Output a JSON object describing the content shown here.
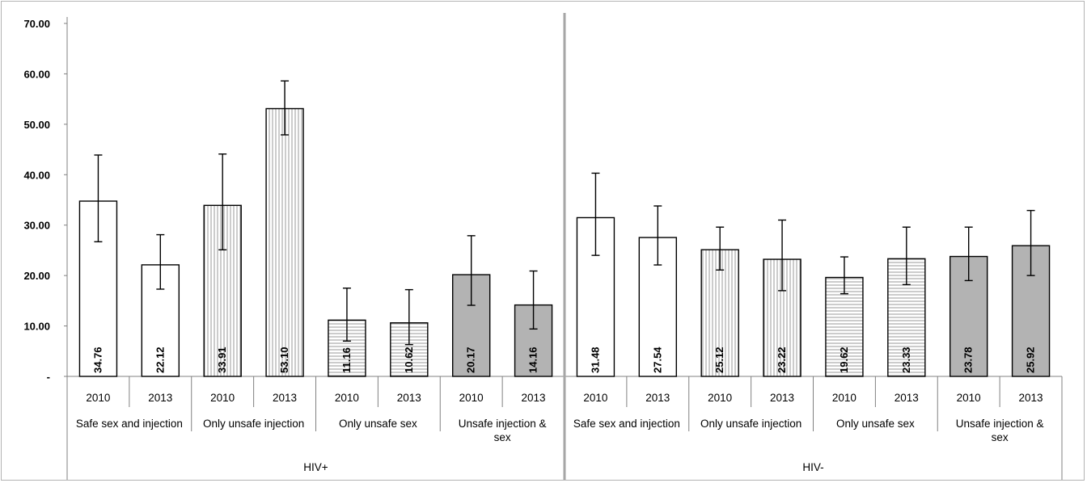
{
  "chart_data": {
    "type": "bar",
    "y_ticks": [
      "70.00",
      "60.00",
      "50.00",
      "40.00",
      "30.00",
      "20.00",
      "10.00",
      "-"
    ],
    "ylim": [
      0,
      70
    ],
    "grid": false,
    "legend": "none",
    "colors": {
      "safe": "#ffffff",
      "unsafe_injection": "#e6e6e6",
      "unsafe_sex": "#f2f2f2",
      "unsafe_both": "#b3b3b3",
      "edge": "#000000"
    },
    "groups": [
      {
        "label": "HIV+",
        "categories": [
          {
            "label": "Safe sex and injection",
            "pattern": "solid-white",
            "bars": [
              {
                "year": "2010",
                "value": 34.76,
                "label": "34.76",
                "err_low": 26.7,
                "err_high": 43.9
              },
              {
                "year": "2013",
                "value": 22.12,
                "label": "22.12",
                "err_low": 17.3,
                "err_high": 28.1
              }
            ]
          },
          {
            "label": "Only unsafe injection",
            "pattern": "vertical-lines",
            "bars": [
              {
                "year": "2010",
                "value": 33.91,
                "label": "33.91",
                "err_low": 25.1,
                "err_high": 44.1
              },
              {
                "year": "2013",
                "value": 53.1,
                "label": "53.10",
                "err_low": 47.9,
                "err_high": 58.6
              }
            ]
          },
          {
            "label": "Only unsafe sex",
            "pattern": "horizontal-lines",
            "bars": [
              {
                "year": "2010",
                "value": 11.16,
                "label": "11.16",
                "err_low": 7.0,
                "err_high": 17.5
              },
              {
                "year": "2013",
                "value": 10.62,
                "label": "10.62",
                "err_low": 6.3,
                "err_high": 17.2
              }
            ]
          },
          {
            "label": "Unsafe injection & sex",
            "pattern": "solid-gray",
            "bars": [
              {
                "year": "2010",
                "value": 20.17,
                "label": "20.17",
                "err_low": 14.1,
                "err_high": 27.9
              },
              {
                "year": "2013",
                "value": 14.16,
                "label": "14.16",
                "err_low": 9.4,
                "err_high": 20.9
              }
            ]
          }
        ]
      },
      {
        "label": "HIV-",
        "categories": [
          {
            "label": "Safe sex and injection",
            "pattern": "solid-white",
            "bars": [
              {
                "year": "2010",
                "value": 31.48,
                "label": "31.48",
                "err_low": 24.0,
                "err_high": 40.3
              },
              {
                "year": "2013",
                "value": 27.54,
                "label": "27.54",
                "err_low": 22.1,
                "err_high": 33.8
              }
            ]
          },
          {
            "label": "Only unsafe injection",
            "pattern": "vertical-lines",
            "bars": [
              {
                "year": "2010",
                "value": 25.12,
                "label": "25.12",
                "err_low": 21.1,
                "err_high": 29.6
              },
              {
                "year": "2013",
                "value": 23.22,
                "label": "23.22",
                "err_low": 17.0,
                "err_high": 31.0
              }
            ]
          },
          {
            "label": "Only unsafe sex",
            "pattern": "horizontal-lines",
            "bars": [
              {
                "year": "2010",
                "value": 19.62,
                "label": "19.62",
                "err_low": 16.4,
                "err_high": 23.7
              },
              {
                "year": "2013",
                "value": 23.33,
                "label": "23.33",
                "err_low": 18.2,
                "err_high": 29.6
              }
            ]
          },
          {
            "label": "Unsafe injection & sex",
            "pattern": "solid-gray",
            "bars": [
              {
                "year": "2010",
                "value": 23.78,
                "label": "23.78",
                "err_low": 19.0,
                "err_high": 29.6
              },
              {
                "year": "2013",
                "value": 25.92,
                "label": "25.92",
                "err_low": 20.0,
                "err_high": 32.9
              }
            ]
          }
        ]
      }
    ]
  }
}
